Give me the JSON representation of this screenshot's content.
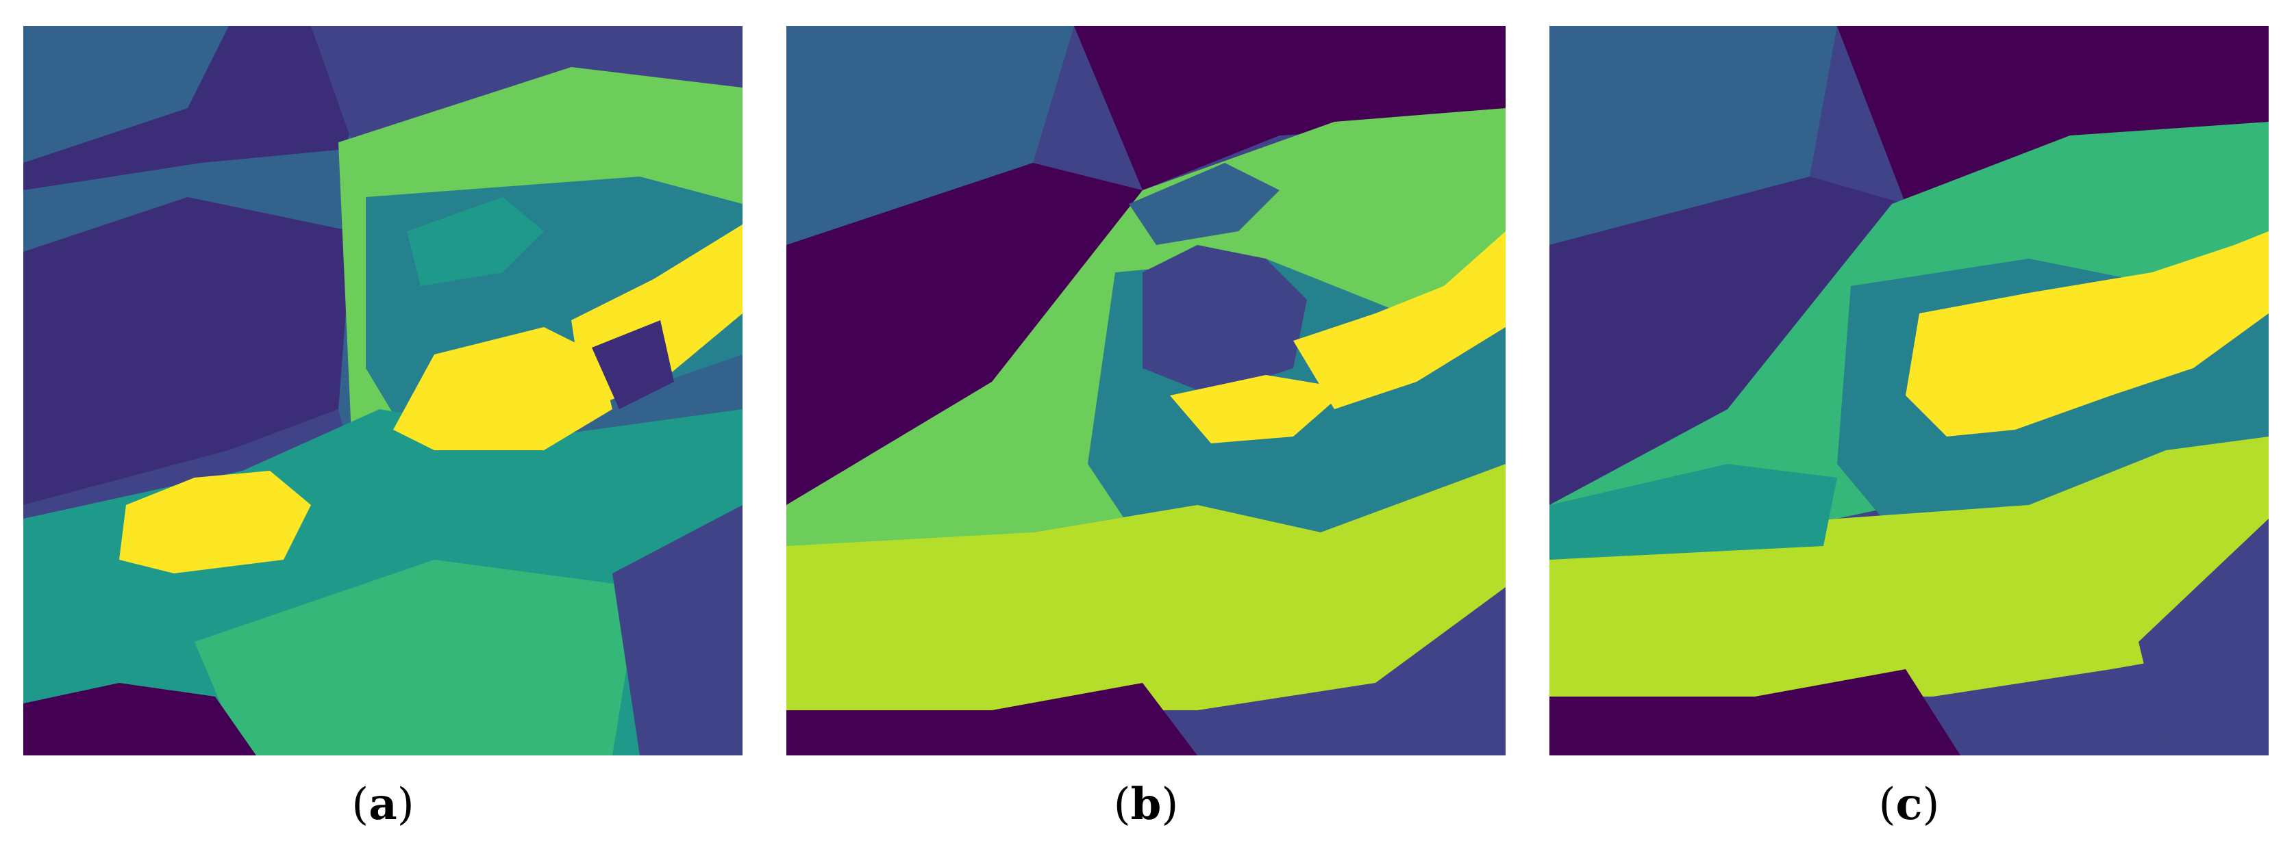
{
  "figure": {
    "colormap": {
      "c0": "#440154",
      "c1": "#3b2d78",
      "c2": "#404387",
      "c3": "#33638d",
      "c4": "#26818e",
      "c5": "#1f9a8a",
      "c6": "#35b779",
      "c7": "#6ccd5a",
      "c8": "#b5de2b",
      "c9": "#fde725"
    },
    "panels": [
      {
        "id": "a",
        "caption_open": "(",
        "caption_letter": "a",
        "caption_close": ")"
      },
      {
        "id": "b",
        "caption_open": "(",
        "caption_letter": "b",
        "caption_close": ")"
      },
      {
        "id": "c",
        "caption_open": "(",
        "caption_letter": "c",
        "caption_close": ")"
      }
    ]
  }
}
